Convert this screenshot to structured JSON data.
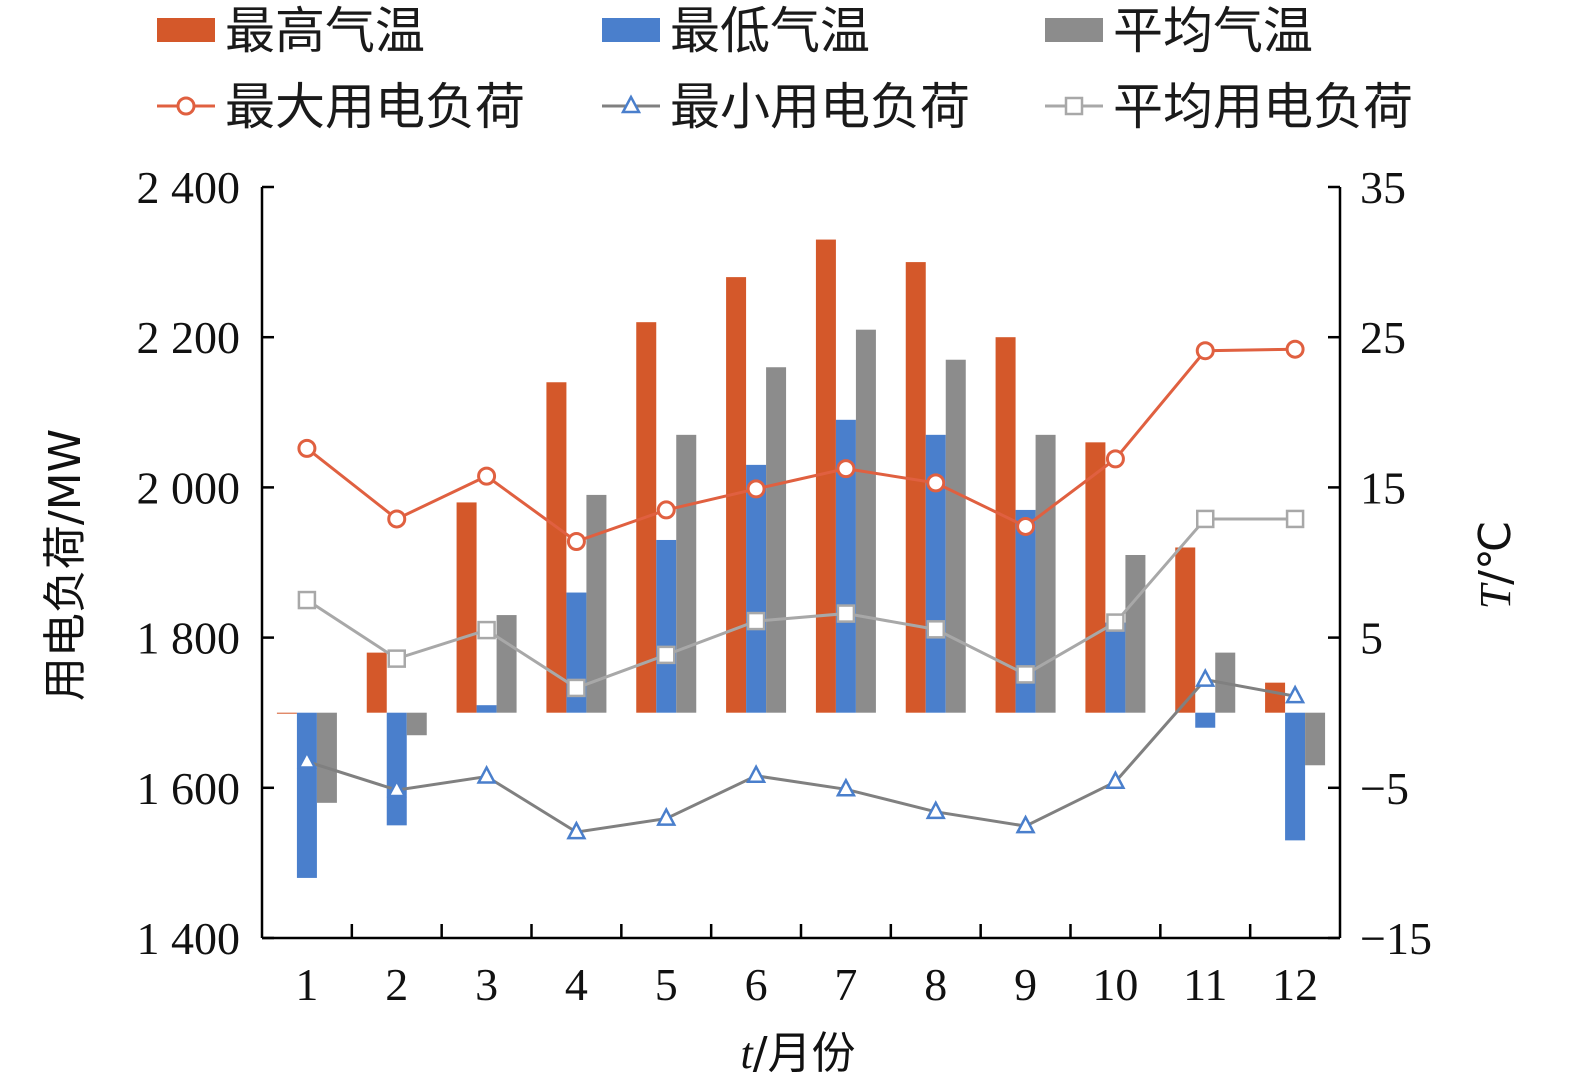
{
  "chart_data": {
    "type": "bar",
    "categories": [
      "1",
      "2",
      "3",
      "4",
      "5",
      "6",
      "7",
      "8",
      "9",
      "10",
      "11",
      "12"
    ],
    "xlabel_var": "t",
    "xlabel_rest": "/月份",
    "ylabel_left": "用电负荷/MW",
    "ylabel_right_var": "T",
    "ylabel_right_rest": "/℃",
    "left_axis": {
      "min": 1400,
      "max": 2400,
      "step": 200,
      "tick_labels": [
        "1 400",
        "1 600",
        "1 800",
        "2 000",
        "2 200",
        "2 400"
      ]
    },
    "right_axis": {
      "min": -15,
      "max": 35,
      "step": 10,
      "tick_labels": [
        "−15",
        "−5",
        "5",
        "15",
        "25",
        "35"
      ]
    },
    "bar_series": [
      {
        "name": "最高气温",
        "color": "#d4582a",
        "values": [
          0,
          4,
          14,
          22,
          26,
          29,
          31.5,
          30,
          25,
          18,
          11,
          2
        ]
      },
      {
        "name": "最低气温",
        "color": "#4a7fcc",
        "values": [
          -11,
          -7.5,
          0.5,
          8,
          11.5,
          16.5,
          19.5,
          18.5,
          13.5,
          6,
          -1,
          -8.5
        ]
      },
      {
        "name": "平均气温",
        "color": "#8c8c8c",
        "values": [
          -6,
          -1.5,
          6.5,
          14.5,
          18.5,
          23,
          25.5,
          23.5,
          18.5,
          10.5,
          4,
          -3.5
        ]
      }
    ],
    "line_series": [
      {
        "name": "最大用电负荷",
        "color": "#e06040",
        "marker": "circle",
        "values": [
          2052,
          1958,
          2015,
          1928,
          1970,
          1998,
          2025,
          2006,
          1948,
          2038,
          2182,
          2184
        ]
      },
      {
        "name": "最小用电负荷",
        "color": "#808080",
        "marker": "triangle",
        "values": [
          1635,
          1597,
          1615,
          1541,
          1559,
          1616,
          1598,
          1568,
          1549,
          1608,
          1744,
          1722
        ]
      },
      {
        "name": "平均用电负荷",
        "color": "#a8a8a8",
        "marker": "square",
        "values": [
          1850,
          1772,
          1810,
          1733,
          1777,
          1822,
          1832,
          1811,
          1751,
          1820,
          1958,
          1958
        ]
      }
    ],
    "legend_position": "top",
    "grid": false
  }
}
